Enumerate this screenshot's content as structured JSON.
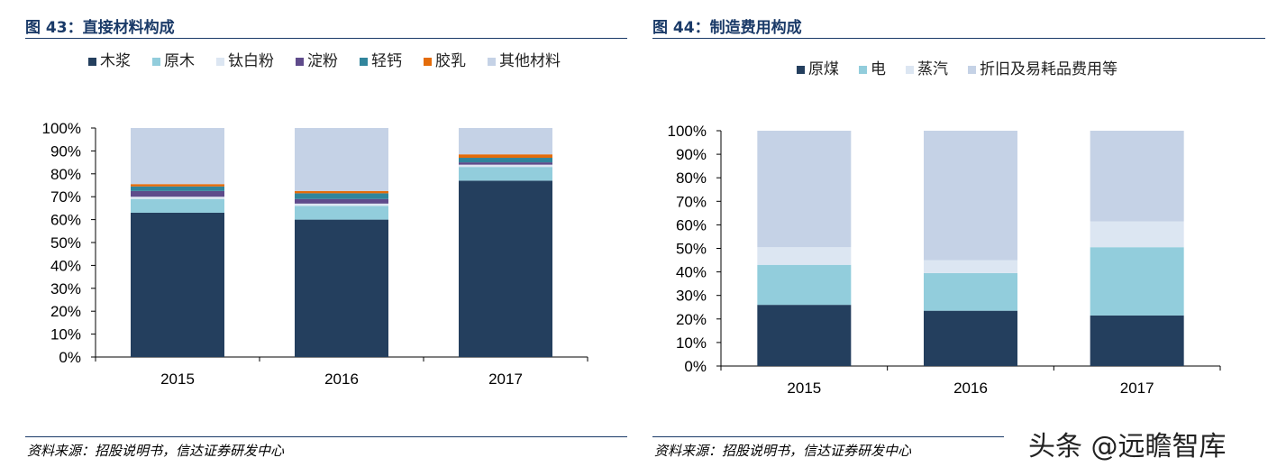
{
  "figures": [
    {
      "title": "图 43：直接材料构成",
      "source": "资料来源：招股说明书，信达证券研发中心"
    },
    {
      "title": "图 44：制造费用构成",
      "source": "资料来源：招股说明书，信达证券研发中心"
    }
  ],
  "watermark": "头条 @远瞻智库",
  "chart_data": [
    {
      "type": "bar",
      "stacked": true,
      "categories": [
        "2015",
        "2016",
        "2017"
      ],
      "ylim": [
        0,
        100
      ],
      "yticks": [
        "0%",
        "10%",
        "20%",
        "30%",
        "40%",
        "50%",
        "60%",
        "70%",
        "80%",
        "90%",
        "100%"
      ],
      "legend_position": "top",
      "grid": false,
      "series": [
        {
          "name": "木浆",
          "color": "#243f5e",
          "values": [
            63,
            60,
            77
          ]
        },
        {
          "name": "原木",
          "color": "#92cddc",
          "values": [
            6,
            6,
            6
          ]
        },
        {
          "name": "钛白粉",
          "color": "#dce6f2",
          "values": [
            1,
            1,
            1
          ]
        },
        {
          "name": "淀粉",
          "color": "#5f4b8b",
          "values": [
            2.5,
            2,
            1
          ]
        },
        {
          "name": "轻钙",
          "color": "#31859c",
          "values": [
            2,
            2.5,
            2
          ]
        },
        {
          "name": "胶乳",
          "color": "#e46c0a",
          "values": [
            1,
            1,
            1.5
          ]
        },
        {
          "name": "其他材料",
          "color": "#c5d2e6",
          "values": [
            24.5,
            27.5,
            11.5
          ]
        }
      ]
    },
    {
      "type": "bar",
      "stacked": true,
      "categories": [
        "2015",
        "2016",
        "2017"
      ],
      "ylim": [
        0,
        100
      ],
      "yticks": [
        "0%",
        "10%",
        "20%",
        "30%",
        "40%",
        "50%",
        "60%",
        "70%",
        "80%",
        "90%",
        "100%"
      ],
      "legend_position": "top",
      "grid": false,
      "series": [
        {
          "name": "原煤",
          "color": "#243f5e",
          "values": [
            26,
            23.5,
            21.5
          ]
        },
        {
          "name": "电",
          "color": "#92cddc",
          "values": [
            17,
            16,
            29
          ]
        },
        {
          "name": "蒸汽",
          "color": "#dce6f2",
          "values": [
            7.5,
            5.5,
            11
          ]
        },
        {
          "name": "折旧及易耗品费用等",
          "color": "#c5d2e6",
          "values": [
            49.5,
            55,
            38.5
          ]
        }
      ]
    }
  ]
}
